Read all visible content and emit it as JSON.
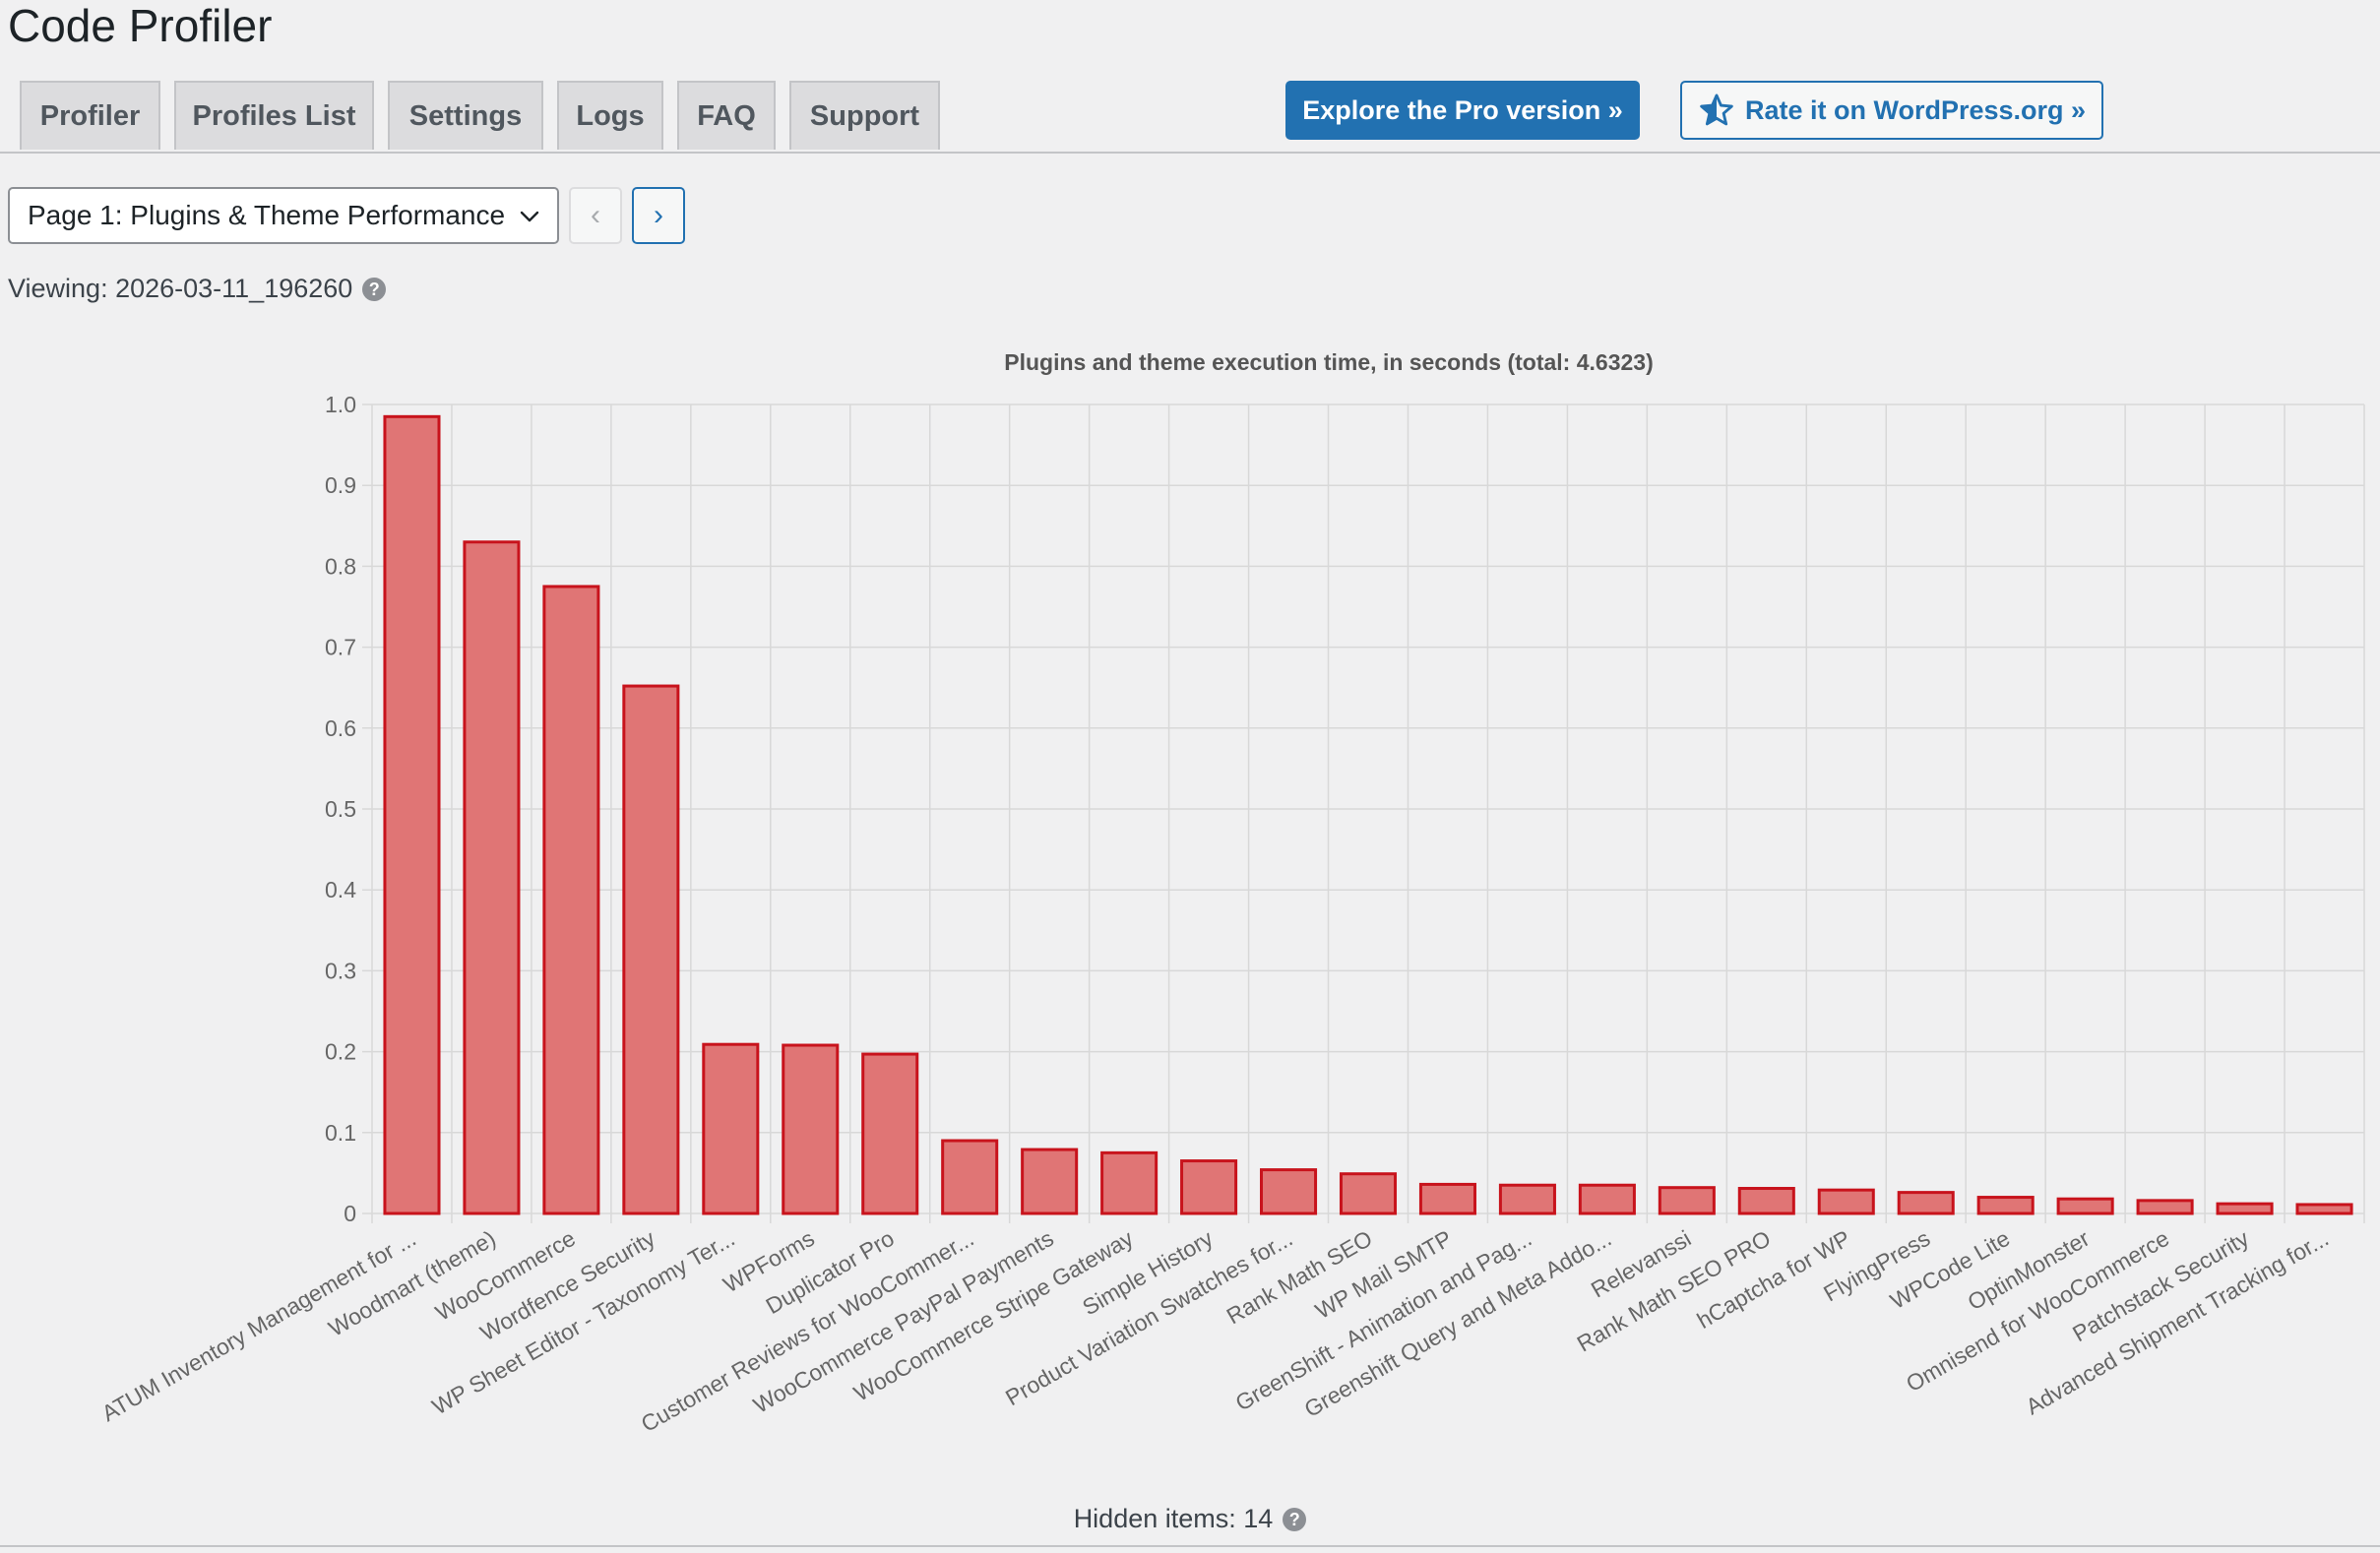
{
  "page": {
    "title": "Code Profiler"
  },
  "tabs": [
    {
      "label": "Profiler"
    },
    {
      "label": "Profiles List"
    },
    {
      "label": "Settings"
    },
    {
      "label": "Logs"
    },
    {
      "label": "FAQ"
    },
    {
      "label": "Support"
    }
  ],
  "actions": {
    "pro_label": "Explore the Pro version »",
    "rate_label": "Rate it on WordPress.org »"
  },
  "pagination": {
    "selected": "Page 1: Plugins & Theme Performance",
    "prev_glyph": "‹",
    "next_glyph": "›"
  },
  "viewing": {
    "label": "Viewing: 2026-03-11_196260",
    "help_glyph": "?"
  },
  "footer": {
    "hidden_items": "Hidden items: 14",
    "help_glyph": "?"
  },
  "colors": {
    "bar_fill": "#e07575",
    "bar_stroke": "#c8131c",
    "accent": "#2271b1"
  },
  "icons": {
    "rate_icon": "star-icon",
    "select_icon": "chevron-down-icon",
    "help_icon": "help-icon"
  },
  "chart_data": {
    "type": "bar",
    "title": "Plugins and theme execution time, in seconds (total: 4.6323)",
    "xlabel": "",
    "ylabel": "",
    "ylim": [
      0,
      1.0
    ],
    "yticks": [
      "0",
      "0.1",
      "0.2",
      "0.3",
      "0.4",
      "0.5",
      "0.6",
      "0.7",
      "0.8",
      "0.9",
      "1.0"
    ],
    "grid": true,
    "legend": "none",
    "categories": [
      "ATUM Inventory Management for ...",
      "Woodmart (theme)",
      "WooCommerce",
      "Wordfence Security",
      "WP Sheet Editor - Taxonomy Ter...",
      "WPForms",
      "Duplicator Pro",
      "Customer Reviews for WooCommer...",
      "WooCommerce PayPal Payments",
      "WooCommerce Stripe Gateway",
      "Simple History",
      "Product Variation Swatches for...",
      "Rank Math SEO",
      "WP Mail SMTP",
      "GreenShift - Animation and Pag...",
      "Greenshift Query and Meta Addo...",
      "Relevanssi",
      "Rank Math SEO PRO",
      "hCaptcha for WP",
      "FlyingPress",
      "WPCode Lite",
      "OptinMonster",
      "Omnisend for WooCommerce",
      "Patchstack Security",
      "Advanced Shipment Tracking for..."
    ],
    "values": [
      0.985,
      0.83,
      0.775,
      0.652,
      0.209,
      0.208,
      0.197,
      0.09,
      0.079,
      0.075,
      0.065,
      0.054,
      0.049,
      0.036,
      0.035,
      0.035,
      0.032,
      0.031,
      0.029,
      0.026,
      0.02,
      0.018,
      0.016,
      0.012,
      0.011
    ]
  }
}
